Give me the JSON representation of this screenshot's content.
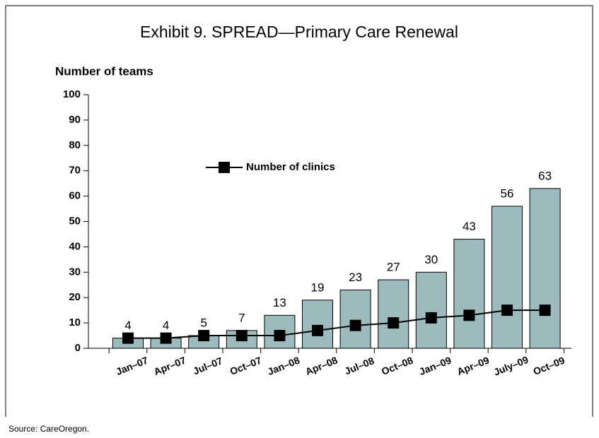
{
  "chart_data": {
    "type": "bar",
    "title": "Exhibit 9. SPREAD—Primary Care Renewal",
    "y_label": "Number of teams",
    "source": "Source: CareOregon.",
    "categories": [
      "Jan–07",
      "Apr–07",
      "Jul–07",
      "Oct–07",
      "Jan–08",
      "Apr–08",
      "Jul–08",
      "Oct–08",
      "Jan–09",
      "Apr–09",
      "July–09",
      "Oct–09"
    ],
    "series": [
      {
        "type": "bar",
        "color": "#9dbabd",
        "values": [
          4,
          4,
          5,
          7,
          13,
          19,
          23,
          27,
          30,
          43,
          56,
          63
        ]
      },
      {
        "type": "line",
        "name": "Number of clinics",
        "color": "#000000",
        "values": [
          4,
          4,
          5,
          5,
          5,
          7,
          9,
          10,
          12,
          13,
          15,
          15
        ]
      }
    ],
    "ylim": [
      0,
      100
    ],
    "yticks": [
      0,
      10,
      20,
      30,
      40,
      50,
      60,
      70,
      80,
      90,
      100
    ],
    "grid": false
  }
}
